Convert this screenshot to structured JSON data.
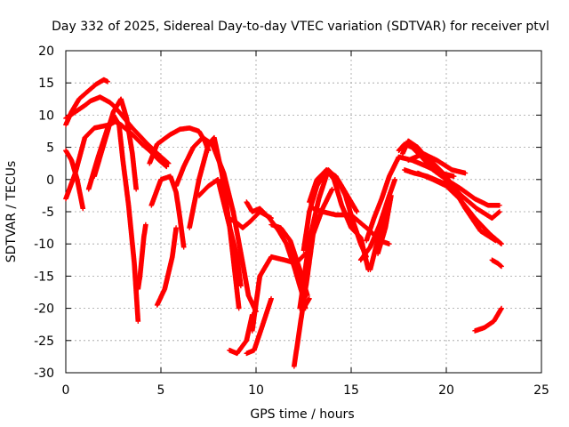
{
  "chart_data": {
    "type": "scatter",
    "title": "Day 332 of 2025, Sidereal Day-to-day VTEC variation (SDTVAR) for receiver ptvl",
    "xlabel": "GPS time / hours",
    "ylabel": "SDTVAR / TECUs",
    "xlim": [
      0,
      25
    ],
    "ylim": [
      -30,
      20
    ],
    "xticks": [
      "0",
      "5",
      "10",
      "15",
      "20",
      "25"
    ],
    "yticks": [
      "20",
      "15",
      "10",
      "5",
      "0",
      "-5",
      "-10",
      "-15",
      "-20",
      "-25",
      "-30"
    ],
    "xtick_values": [
      0,
      5,
      10,
      15,
      20,
      25
    ],
    "ytick_values": [
      20,
      15,
      10,
      5,
      0,
      -5,
      -10,
      -15,
      -20,
      -25,
      -30
    ],
    "grid": true,
    "marker": "+",
    "color": "#ff0000",
    "series": [
      {
        "name": "trace-1",
        "x": [
          0,
          0.3,
          0.7,
          1.2,
          1.6,
          2.0,
          2.2
        ],
        "y": [
          8.5,
          10.5,
          12.5,
          13.8,
          14.8,
          15.5,
          15.2
        ]
      },
      {
        "name": "trace-2",
        "x": [
          0,
          0.5,
          1.0,
          1.3,
          1.8,
          2.3,
          2.5,
          2.8,
          3.5,
          4.3,
          4.9,
          5.4
        ],
        "y": [
          9.5,
          10.5,
          11.5,
          12.2,
          12.8,
          12.0,
          11.5,
          10.5,
          8.0,
          5.5,
          3.8,
          2.5
        ]
      },
      {
        "name": "trace-3",
        "x": [
          0,
          0.5,
          1.0,
          1.5,
          2.3,
          2.6,
          2.9,
          3.5,
          4.0,
          4.4,
          4.9,
          5.3
        ],
        "y": [
          -3.0,
          1.0,
          6.5,
          8.0,
          8.5,
          9.0,
          8.5,
          7.0,
          5.5,
          4.5,
          3.0,
          2.0
        ]
      },
      {
        "name": "trace-4",
        "x": [
          0,
          0.3,
          0.6,
          0.9
        ],
        "y": [
          4.5,
          3.0,
          0,
          -4.5
        ]
      },
      {
        "name": "trace-5",
        "x": [
          1.2,
          1.7,
          2.2,
          2.5,
          2.8,
          3.0,
          3.3,
          3.6,
          3.8
        ],
        "y": [
          -1.5,
          3.5,
          8.0,
          10.0,
          8.5,
          3.0,
          -4.0,
          -13.0,
          -22.0
        ]
      },
      {
        "name": "trace-6",
        "x": [
          1.5,
          2.0,
          2.5,
          2.9,
          3.2,
          3.5,
          3.7
        ],
        "y": [
          0.5,
          5.5,
          10.5,
          12.5,
          9.5,
          4.0,
          -1.5
        ]
      },
      {
        "name": "trace-7",
        "x": [
          3.8,
          3.9,
          4.0,
          4.1,
          4.2
        ],
        "y": [
          -17.0,
          -15.0,
          -12.0,
          -9.0,
          -7.0
        ]
      },
      {
        "name": "trace-8",
        "x": [
          4.4,
          4.8,
          5.5,
          6.0,
          6.5,
          7.0,
          7.3,
          7.5
        ],
        "y": [
          2.5,
          5.5,
          7.0,
          7.8,
          8.0,
          7.5,
          6.0,
          4.5
        ]
      },
      {
        "name": "trace-9",
        "x": [
          4.5,
          5.0,
          5.5,
          5.8,
          6.0,
          6.2
        ],
        "y": [
          -4.0,
          0,
          0.5,
          -2.0,
          -6.0,
          -10.5
        ]
      },
      {
        "name": "trace-10",
        "x": [
          4.8,
          5.2,
          5.6,
          5.8
        ],
        "y": [
          -19.5,
          -17.0,
          -12.0,
          -7.5
        ]
      },
      {
        "name": "trace-11",
        "x": [
          5.8,
          6.2,
          6.7,
          7.2,
          7.7,
          8.3,
          8.8,
          9.3,
          9.6,
          10.0
        ],
        "y": [
          -1.0,
          2.0,
          5.0,
          6.5,
          5.5,
          1.0,
          -5.0,
          -13.0,
          -18.0,
          -20.5
        ]
      },
      {
        "name": "trace-12",
        "x": [
          6.5,
          7.0,
          7.5,
          7.8,
          8.2,
          8.6,
          9.1
        ],
        "y": [
          -7.5,
          0,
          5.5,
          6.5,
          1.0,
          -7.0,
          -20.0
        ]
      },
      {
        "name": "trace-13",
        "x": [
          7.0,
          7.5,
          8.0,
          8.5,
          9.0,
          9.2
        ],
        "y": [
          -2.5,
          -1.0,
          0,
          -6.0,
          -12.0,
          -16.5
        ]
      },
      {
        "name": "trace-14",
        "x": [
          8.5,
          8.9,
          9.3,
          9.7,
          10.2,
          10.8
        ],
        "y": [
          -6.0,
          -6.5,
          -7.5,
          -6.5,
          -5.0,
          -6.0
        ]
      },
      {
        "name": "trace-15",
        "x": [
          8.6,
          9.0,
          9.5,
          9.8
        ],
        "y": [
          -26.5,
          -27.0,
          -25.0,
          -21.0
        ]
      },
      {
        "name": "trace-16",
        "x": [
          9.5,
          9.8,
          10.2,
          10.7,
          11.2,
          11.6,
          12.0,
          12.4,
          12.6
        ],
        "y": [
          -3.5,
          -5.0,
          -4.5,
          -6.0,
          -8.0,
          -10.0,
          -13.5,
          -17.5,
          -20.0
        ]
      },
      {
        "name": "trace-17",
        "x": [
          9.5,
          9.9,
          10.3,
          10.8
        ],
        "y": [
          -27.0,
          -26.5,
          -23.0,
          -18.5
        ]
      },
      {
        "name": "trace-18",
        "x": [
          9.8,
          10.2,
          10.8,
          11.5,
          12.1,
          12.6
        ],
        "y": [
          -23.5,
          -15.0,
          -12.0,
          -12.5,
          -13.0,
          -11.5
        ]
      },
      {
        "name": "trace-19",
        "x": [
          10.8,
          11.3,
          11.8,
          12.3,
          12.7
        ],
        "y": [
          -7.0,
          -7.5,
          -9.5,
          -14.0,
          -18.0
        ]
      },
      {
        "name": "trace-20",
        "x": [
          12.0,
          12.3,
          12.7,
          13.0,
          13.5,
          14.0
        ],
        "y": [
          -29.0,
          -23.0,
          -15.0,
          -8.5,
          -4.5,
          -1.5
        ]
      },
      {
        "name": "trace-21",
        "x": [
          12.3,
          12.8,
          13.3,
          13.8,
          14.3,
          14.8,
          15.3
        ],
        "y": [
          -20.0,
          -9.5,
          -3.0,
          1.5,
          0,
          -2.5,
          -5.0
        ]
      },
      {
        "name": "trace-22",
        "x": [
          12.5,
          12.8
        ],
        "y": [
          -20.0,
          -18.5
        ]
      },
      {
        "name": "trace-23",
        "x": [
          12.5,
          12.8,
          13.2,
          13.7,
          14.1,
          14.5,
          15.0,
          15.5,
          15.9
        ],
        "y": [
          -11.0,
          -5.0,
          -1.0,
          1.5,
          0,
          -4.0,
          -7.5,
          -9.0,
          -14.0
        ]
      },
      {
        "name": "trace-24",
        "x": [
          12.8,
          13.2,
          13.7,
          14.2,
          14.7,
          15.1,
          15.5,
          15.8
        ],
        "y": [
          -3.5,
          0,
          1.5,
          0.5,
          -2.5,
          -6.5,
          -10.0,
          -12.0
        ]
      },
      {
        "name": "trace-25",
        "x": [
          13.0,
          13.5,
          14.2,
          15.0,
          15.6,
          16.0,
          16.5,
          17.0
        ],
        "y": [
          -4.5,
          -5.0,
          -5.5,
          -5.5,
          -7.0,
          -8.0,
          -9.5,
          -10.0
        ]
      },
      {
        "name": "trace-26",
        "x": [
          15.5,
          16.0,
          16.5,
          17.0,
          17.3
        ],
        "y": [
          -12.5,
          -10.5,
          -7.0,
          -2.5,
          0
        ]
      },
      {
        "name": "trace-27",
        "x": [
          15.8,
          16.2,
          16.6,
          17.0,
          17.5
        ],
        "y": [
          -9.5,
          -6.0,
          -3.0,
          0.5,
          3.5
        ]
      },
      {
        "name": "trace-28",
        "x": [
          16.0,
          16.3,
          16.7,
          17.0
        ],
        "y": [
          -14.0,
          -10.5,
          -6.0,
          -3.5
        ]
      },
      {
        "name": "trace-29",
        "x": [
          16.4,
          16.8,
          17.1
        ],
        "y": [
          -11.5,
          -7.5,
          -2.5
        ]
      },
      {
        "name": "trace-30",
        "x": [
          17.5,
          17.8,
          18.2,
          18.7,
          19.3,
          20.0,
          20.8,
          21.5,
          22.2,
          22.8
        ],
        "y": [
          4.5,
          5.5,
          5.0,
          3.5,
          1.5,
          0,
          -1.5,
          -3.0,
          -4.0,
          -4.0
        ]
      },
      {
        "name": "trace-31",
        "x": [
          17.7,
          18.0,
          18.5,
          19.2,
          20.0,
          20.8,
          21.6,
          22.4,
          22.8
        ],
        "y": [
          4.0,
          6.0,
          5.0,
          2.5,
          0,
          -2.5,
          -4.5,
          -6.0,
          -5.0
        ]
      },
      {
        "name": "trace-32",
        "x": [
          17.5,
          18.2,
          19.0,
          19.7,
          20.4
        ],
        "y": [
          3.5,
          3.0,
          2.0,
          1.0,
          0.5
        ]
      },
      {
        "name": "trace-33",
        "x": [
          17.8,
          18.3,
          19.0,
          19.8,
          20.5
        ],
        "y": [
          1.5,
          1.0,
          0.5,
          -0.5,
          -1.0
        ]
      },
      {
        "name": "trace-34",
        "x": [
          18.0,
          18.8,
          19.5,
          20.3,
          21.0
        ],
        "y": [
          3.0,
          4.0,
          3.0,
          1.5,
          1.0
        ]
      },
      {
        "name": "trace-35",
        "x": [
          18.5,
          19.3,
          20.0,
          20.7,
          21.5,
          22.3,
          22.9
        ],
        "y": [
          1.0,
          0,
          -1.0,
          -3.0,
          -6.0,
          -8.5,
          -10.0
        ]
      },
      {
        "name": "trace-36",
        "x": [
          19.0,
          20.0,
          21.0,
          21.8,
          22.6
        ],
        "y": [
          3.5,
          0.5,
          -4.5,
          -8.0,
          -9.5
        ]
      },
      {
        "name": "trace-37",
        "x": [
          21.5,
          22.0,
          22.5,
          22.9
        ],
        "y": [
          -23.5,
          -23.0,
          -22.0,
          -20.0
        ]
      },
      {
        "name": "trace-38",
        "x": [
          22.4,
          22.7,
          22.9
        ],
        "y": [
          -12.5,
          -13.0,
          -13.5
        ]
      }
    ]
  }
}
